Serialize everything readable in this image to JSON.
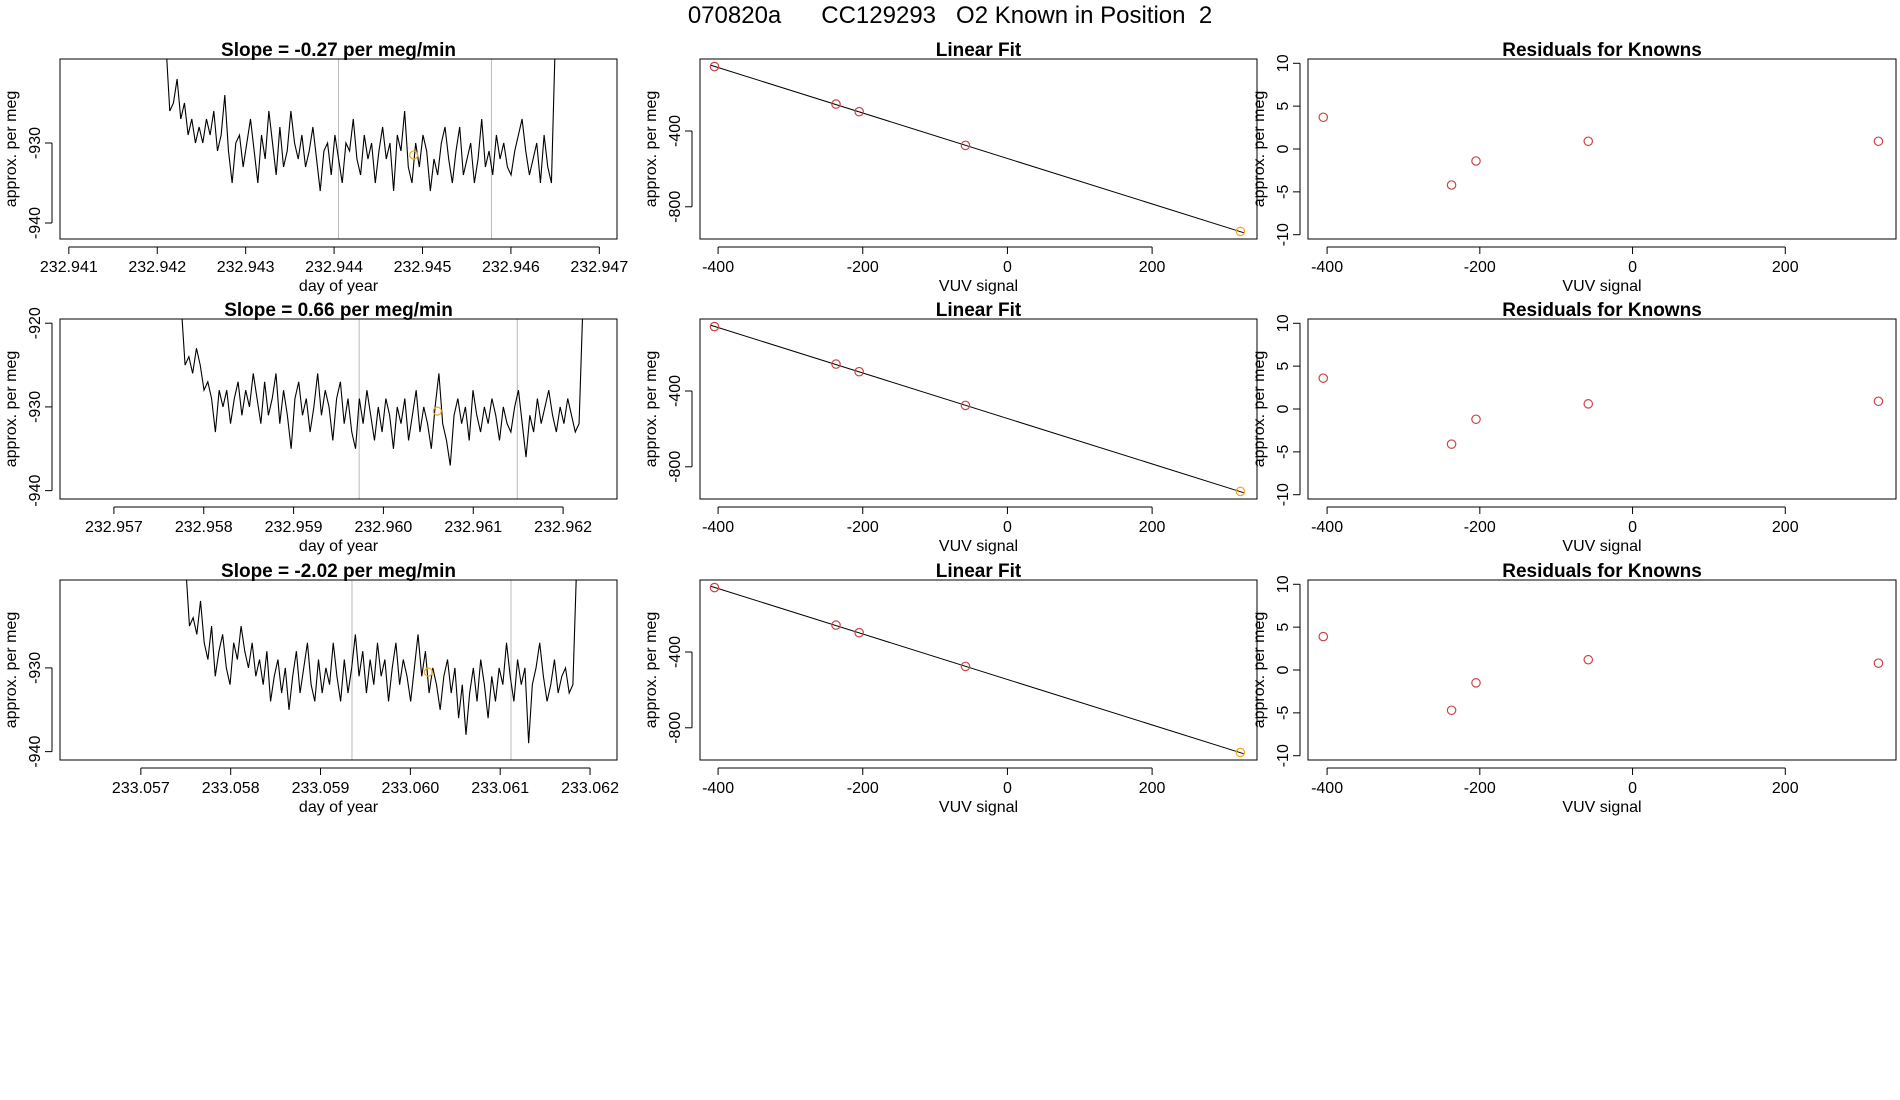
{
  "figure": {
    "title": "070820a      CC129293   O2 Known in Position  2"
  },
  "chart_data": [
    {
      "type": "line",
      "row": 1,
      "title": "Slope =  -0.27  per meg/min",
      "xlabel": "day of year",
      "ylabel": "approx. per meg",
      "xlim": [
        232.9409,
        232.9472
      ],
      "ylim": [
        -942,
        -919.5
      ],
      "x_ticks": [
        232.941,
        232.942,
        232.943,
        232.944,
        232.945,
        232.946,
        232.947
      ],
      "x_tick_labels": [
        "232.941",
        "232.942",
        "232.943",
        "232.944",
        "232.945",
        "232.946",
        "232.947"
      ],
      "y_ticks": [
        -930,
        -940
      ],
      "y_tick_labels": [
        "-930",
        "-940"
      ],
      "vlines": [
        232.94405,
        232.94578
      ],
      "x_start": 232.9421,
      "x_end": 232.9465,
      "trace": [
        -918,
        -926,
        -925,
        -922,
        -927,
        -925,
        -929,
        -927,
        -930,
        -928,
        -930,
        -927,
        -929,
        -926,
        -931,
        -929,
        -924,
        -931,
        -935,
        -930,
        -929,
        -933,
        -930,
        -927,
        -931,
        -935,
        -929,
        -932,
        -926,
        -930,
        -934,
        -928,
        -933,
        -931,
        -926,
        -930,
        -932,
        -929,
        -933,
        -931,
        -928,
        -932,
        -936,
        -931,
        -930,
        -934,
        -929,
        -932,
        -935,
        -930,
        -931,
        -927,
        -932,
        -934,
        -929,
        -932,
        -930,
        -935,
        -931,
        -928,
        -932,
        -930,
        -936,
        -929,
        -931,
        -926,
        -933,
        -935,
        -930,
        -933,
        -929,
        -931,
        -936,
        -932,
        -934,
        -930,
        -928,
        -932,
        -935,
        -931,
        -928,
        -934,
        -932,
        -930,
        -935,
        -932,
        -927,
        -933,
        -931,
        -934,
        -929,
        -932,
        -930,
        -933,
        -934,
        -931,
        -929,
        -927,
        -931,
        -934,
        -932,
        -930,
        -935,
        -929,
        -933,
        -935,
        -918
      ],
      "marker": {
        "x": 232.9449,
        "y": -931.5
      },
      "colors": {
        "line": "#000000",
        "marker": "#f5a623",
        "vline": "#bbbbbb"
      }
    },
    {
      "type": "scatter",
      "row": 1,
      "title": "Linear Fit",
      "xlabel": "VUV signal",
      "ylabel": "approx. per meg",
      "xlim": [
        -425,
        345
      ],
      "ylim": [
        -970,
        -20
      ],
      "x_ticks": [
        -400,
        -200,
        0,
        200
      ],
      "x_tick_labels": [
        "-400",
        "-200",
        "0",
        "200"
      ],
      "y_ticks": [
        -400,
        -800
      ],
      "y_tick_labels": [
        "-400",
        "-800"
      ],
      "points": [
        {
          "x": -405,
          "y": -60
        },
        {
          "x": -237,
          "y": -258
        },
        {
          "x": -205,
          "y": -298
        },
        {
          "x": -58,
          "y": -476
        },
        {
          "x": 322,
          "y": -930
        }
      ],
      "highlight_index": 4,
      "fit": {
        "slope": -1.2,
        "intercept": -545
      },
      "colors": {
        "point": "#cc4444",
        "highlight": "#f5a623",
        "fit": "#000000"
      }
    },
    {
      "type": "scatter",
      "row": 1,
      "title": "Residuals for Knowns",
      "xlabel": "VUV signal",
      "ylabel": "approx. per meg",
      "xlim": [
        -425,
        345
      ],
      "ylim": [
        -10.5,
        10.5
      ],
      "x_ticks": [
        -400,
        -200,
        0,
        200
      ],
      "x_tick_labels": [
        "-400",
        "-200",
        "0",
        "200"
      ],
      "y_ticks": [
        10,
        5,
        0,
        -5,
        -10
      ],
      "y_tick_labels": [
        "10",
        "5",
        "0",
        "-5",
        "-10"
      ],
      "points": [
        {
          "x": -405,
          "y": 3.7
        },
        {
          "x": -237,
          "y": -4.2
        },
        {
          "x": -205,
          "y": -1.4
        },
        {
          "x": -58,
          "y": 0.9
        },
        {
          "x": 322,
          "y": 0.9
        }
      ],
      "colors": {
        "point": "#cc4444"
      }
    },
    {
      "type": "line",
      "row": 2,
      "title": "Slope =  0.66  per meg/min",
      "xlabel": "day of year",
      "ylabel": "approx. per meg",
      "xlim": [
        232.9564,
        232.9626
      ],
      "ylim": [
        -941,
        -919.5
      ],
      "x_ticks": [
        232.957,
        232.958,
        232.959,
        232.96,
        232.961,
        232.962
      ],
      "x_tick_labels": [
        "232.957",
        "232.958",
        "232.959",
        "232.960",
        "232.961",
        "232.962"
      ],
      "y_ticks": [
        -920,
        -930,
        -940
      ],
      "y_tick_labels": [
        "-920",
        "-930",
        "-940"
      ],
      "vlines": [
        232.95973,
        232.96149
      ],
      "x_start": 232.95775,
      "x_end": 232.96222,
      "trace": [
        -918,
        -925,
        -924,
        -926,
        -923,
        -925,
        -928,
        -927,
        -929,
        -933,
        -928,
        -930,
        -928,
        -932,
        -929,
        -927,
        -931,
        -928,
        -930,
        -926,
        -929,
        -932,
        -927,
        -931,
        -929,
        -926,
        -932,
        -928,
        -931,
        -935,
        -929,
        -927,
        -931,
        -929,
        -933,
        -930,
        -926,
        -931,
        -928,
        -930,
        -934,
        -929,
        -927,
        -932,
        -929,
        -933,
        -935,
        -929,
        -932,
        -928,
        -931,
        -934,
        -930,
        -933,
        -929,
        -931,
        -935,
        -930,
        -932,
        -929,
        -934,
        -931,
        -928,
        -933,
        -930,
        -932,
        -935,
        -930,
        -926,
        -932,
        -934,
        -937,
        -931,
        -929,
        -932,
        -930,
        -934,
        -928,
        -931,
        -933,
        -930,
        -932,
        -929,
        -931,
        -934,
        -930,
        -932,
        -933,
        -930,
        -928,
        -932,
        -936,
        -931,
        -933,
        -929,
        -932,
        -930,
        -928,
        -931,
        -933,
        -930,
        -932,
        -929,
        -931,
        -933,
        -932,
        -918
      ],
      "marker": {
        "x": 232.9606,
        "y": -930.5
      },
      "colors": {
        "line": "#000000",
        "marker": "#f5a623",
        "vline": "#bbbbbb"
      }
    },
    {
      "type": "scatter",
      "row": 2,
      "title": "Linear Fit",
      "xlabel": "VUV signal",
      "ylabel": "approx. per meg",
      "xlim": [
        -425,
        345
      ],
      "ylim": [
        -970,
        -20
      ],
      "x_ticks": [
        -400,
        -200,
        0,
        200
      ],
      "x_tick_labels": [
        "-400",
        "-200",
        "0",
        "200"
      ],
      "y_ticks": [
        -400,
        -800
      ],
      "y_tick_labels": [
        "-400",
        "-800"
      ],
      "points": [
        {
          "x": -405,
          "y": -60
        },
        {
          "x": -237,
          "y": -258
        },
        {
          "x": -205,
          "y": -298
        },
        {
          "x": -58,
          "y": -476
        },
        {
          "x": 322,
          "y": -930
        }
      ],
      "highlight_index": 4,
      "fit": {
        "slope": -1.2,
        "intercept": -545
      },
      "colors": {
        "point": "#cc4444",
        "highlight": "#f5a623",
        "fit": "#000000"
      }
    },
    {
      "type": "scatter",
      "row": 2,
      "title": "Residuals for Knowns",
      "xlabel": "VUV signal",
      "ylabel": "approx. per meg",
      "xlim": [
        -425,
        345
      ],
      "ylim": [
        -10.5,
        10.5
      ],
      "x_ticks": [
        -400,
        -200,
        0,
        200
      ],
      "x_tick_labels": [
        "-400",
        "-200",
        "0",
        "200"
      ],
      "y_ticks": [
        10,
        5,
        0,
        -5,
        -10
      ],
      "y_tick_labels": [
        "10",
        "5",
        "0",
        "-5",
        "-10"
      ],
      "points": [
        {
          "x": -405,
          "y": 3.6
        },
        {
          "x": -237,
          "y": -4.1
        },
        {
          "x": -205,
          "y": -1.2
        },
        {
          "x": -58,
          "y": 0.6
        },
        {
          "x": 322,
          "y": 0.9
        }
      ],
      "colors": {
        "point": "#cc4444"
      }
    },
    {
      "type": "line",
      "row": 3,
      "title": "Slope =  -2.02  per meg/min",
      "xlabel": "day of year",
      "ylabel": "approx. per meg",
      "xlim": [
        233.0561,
        233.0623
      ],
      "ylim": [
        -941,
        -919.5
      ],
      "x_ticks": [
        233.057,
        233.058,
        233.059,
        233.06,
        233.061,
        233.062
      ],
      "x_tick_labels": [
        "233.057",
        "233.058",
        "233.059",
        "233.060",
        "233.061",
        "233.062"
      ],
      "y_ticks": [
        -930,
        -940
      ],
      "y_tick_labels": [
        "-930",
        "-940"
      ],
      "vlines": [
        233.05935,
        233.06112
      ],
      "x_start": 233.0575,
      "x_end": 233.06185,
      "trace": [
        -918,
        -925,
        -924,
        -926,
        -922,
        -927,
        -929,
        -925,
        -931,
        -928,
        -926,
        -930,
        -932,
        -927,
        -929,
        -925,
        -928,
        -930,
        -927,
        -931,
        -929,
        -932,
        -928,
        -934,
        -931,
        -929,
        -933,
        -930,
        -935,
        -931,
        -928,
        -933,
        -930,
        -927,
        -932,
        -934,
        -929,
        -933,
        -930,
        -932,
        -927,
        -931,
        -934,
        -929,
        -933,
        -930,
        -926,
        -931,
        -928,
        -933,
        -929,
        -932,
        -927,
        -931,
        -929,
        -934,
        -930,
        -927,
        -932,
        -929,
        -931,
        -934,
        -930,
        -926,
        -931,
        -928,
        -933,
        -930,
        -932,
        -935,
        -931,
        -929,
        -933,
        -930,
        -936,
        -932,
        -938,
        -933,
        -930,
        -934,
        -929,
        -932,
        -936,
        -931,
        -934,
        -930,
        -932,
        -927,
        -931,
        -934,
        -929,
        -932,
        -930,
        -939,
        -932,
        -930,
        -927,
        -931,
        -934,
        -932,
        -929,
        -933,
        -931,
        -930,
        -933,
        -932,
        -918
      ],
      "marker": {
        "x": 233.0602,
        "y": -930.5
      },
      "colors": {
        "line": "#000000",
        "marker": "#f5a623",
        "vline": "#bbbbbb"
      }
    },
    {
      "type": "scatter",
      "row": 3,
      "title": "Linear Fit",
      "xlabel": "VUV signal",
      "ylabel": "approx. per meg",
      "xlim": [
        -425,
        345
      ],
      "ylim": [
        -970,
        -20
      ],
      "x_ticks": [
        -400,
        -200,
        0,
        200
      ],
      "x_tick_labels": [
        "-400",
        "-200",
        "0",
        "200"
      ],
      "y_ticks": [
        -400,
        -800
      ],
      "y_tick_labels": [
        "-400",
        "-800"
      ],
      "points": [
        {
          "x": -405,
          "y": -60
        },
        {
          "x": -237,
          "y": -258
        },
        {
          "x": -205,
          "y": -298
        },
        {
          "x": -58,
          "y": -476
        },
        {
          "x": 322,
          "y": -930
        }
      ],
      "highlight_index": 4,
      "fit": {
        "slope": -1.2,
        "intercept": -545
      },
      "colors": {
        "point": "#cc4444",
        "highlight": "#f5a623",
        "fit": "#000000"
      }
    },
    {
      "type": "scatter",
      "row": 3,
      "title": "Residuals for Knowns",
      "xlabel": "VUV signal",
      "ylabel": "approx. per meg",
      "xlim": [
        -425,
        345
      ],
      "ylim": [
        -10.5,
        10.5
      ],
      "x_ticks": [
        -400,
        -200,
        0,
        200
      ],
      "x_tick_labels": [
        "-400",
        "-200",
        "0",
        "200"
      ],
      "y_ticks": [
        10,
        5,
        0,
        -5,
        -10
      ],
      "y_tick_labels": [
        "10",
        "5",
        "0",
        "-5",
        "-10"
      ],
      "points": [
        {
          "x": -405,
          "y": 3.9
        },
        {
          "x": -237,
          "y": -4.7
        },
        {
          "x": -205,
          "y": -1.5
        },
        {
          "x": -58,
          "y": 1.2
        },
        {
          "x": 322,
          "y": 0.8
        }
      ],
      "colors": {
        "point": "#cc4444"
      }
    }
  ]
}
